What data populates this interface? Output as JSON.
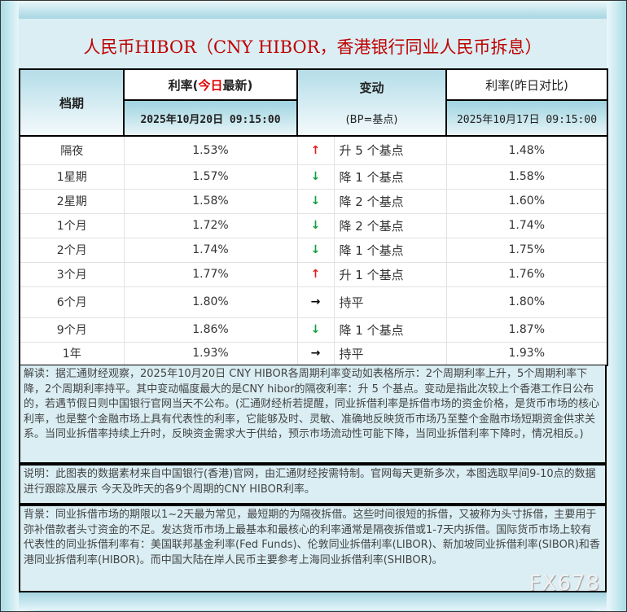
{
  "title": "人民币HIBOR（CNY HIBOR，香港银行同业人民币拆息）",
  "header": {
    "period": "档期",
    "today_prefix": "利率(",
    "today_highlight": "今日",
    "today_suffix": "最新)",
    "today_time": "2025年10月20日  09:15:00",
    "change": "变动",
    "change_unit": "(BP=基点)",
    "prev": "利率(昨日对比)",
    "prev_time": "2025年10月17日  09:15:00"
  },
  "colors": {
    "title": "#c00000",
    "up": "#e02020",
    "down": "#10a040"
  },
  "rows": [
    {
      "period": "隔夜",
      "today": "1.53%",
      "dir": "up",
      "arrow": "↑",
      "change": "升 5 个基点",
      "prev": "1.48%"
    },
    {
      "period": "1星期",
      "today": "1.57%",
      "dir": "down",
      "arrow": "↓",
      "change": "降 1 个基点",
      "prev": "1.58%"
    },
    {
      "period": "2星期",
      "today": "1.58%",
      "dir": "down",
      "arrow": "↓",
      "change": "降 2 个基点",
      "prev": "1.60%"
    },
    {
      "period": "1个月",
      "today": "1.72%",
      "dir": "down",
      "arrow": "↓",
      "change": "降 2 个基点",
      "prev": "1.74%"
    },
    {
      "period": "2个月",
      "today": "1.74%",
      "dir": "down",
      "arrow": "↓",
      "change": "降 1 个基点",
      "prev": "1.75%"
    },
    {
      "period": "3个月",
      "today": "1.77%",
      "dir": "up",
      "arrow": "↑",
      "change": "升 1 个基点",
      "prev": "1.76%"
    },
    {
      "period": "6个月",
      "today": "1.80%",
      "dir": "flat",
      "arrow": "→",
      "change": "持平",
      "prev": "1.80%"
    },
    {
      "period": "9个月",
      "today": "1.86%",
      "dir": "down",
      "arrow": "↓",
      "change": "降 1 个基点",
      "prev": "1.87%"
    },
    {
      "period": "1年",
      "today": "1.93%",
      "dir": "flat",
      "arrow": "→",
      "change": "持平",
      "prev": "1.93%"
    }
  ],
  "notes": {
    "interpretation": "解读：据汇通财经观察，2025年10月20日 CNY HIBOR各周期利率变动如表格所示：2个周期利率上升，5个周期利率下降，2个周期利率持平。其中变动幅度最大的是CNY hibor的隔夜利率：升 5 个基点。变动是指此次较上个香港工作日公布的，若遇节假日则中国银行官网当天不公布。(汇通财经析若提醒，同业拆借利率是拆借市场的资金价格，是货币市场的核心利率，也是整个金融市场上具有代表性的利率，它能够及时、灵敏、准确地反映货币市场乃至整个金融市场短期资金供求关系。当同业拆借率持续上升时，反映资金需求大于供给，预示市场流动性可能下降，当同业拆借利率下降时，情况相反。)",
    "explanation": "说明：此图表的数据素材来自中国银行(香港)官网，由汇通财经按需特制。官网每天更新多次，本图选取早间9-10点的数据进行跟踪及展示 今天及昨天的各9个周期的CNY HIBOR利率。",
    "background": "背景：同业拆借市场的期限以1~2天最为常见，最短期的为隔夜拆借。这些时间很短的拆借，又被称为头寸拆借，主要用于弥补借款者头寸资金的不足。发达货币市场上最基本和最核心的利率通常是隔夜拆借或1-7天内拆借。国际货币市场上较有代表性的同业拆借利率有：美国联邦基金利率(Fed Funds)、伦敦同业拆借利率(LIBOR)、新加坡同业拆借利率(SIBOR)和香港同业拆借利率(HIBOR)。而中国大陆在岸人民币主要参考上海同业拆借利率(SHIBOR)。"
  },
  "watermark": "FX678"
}
